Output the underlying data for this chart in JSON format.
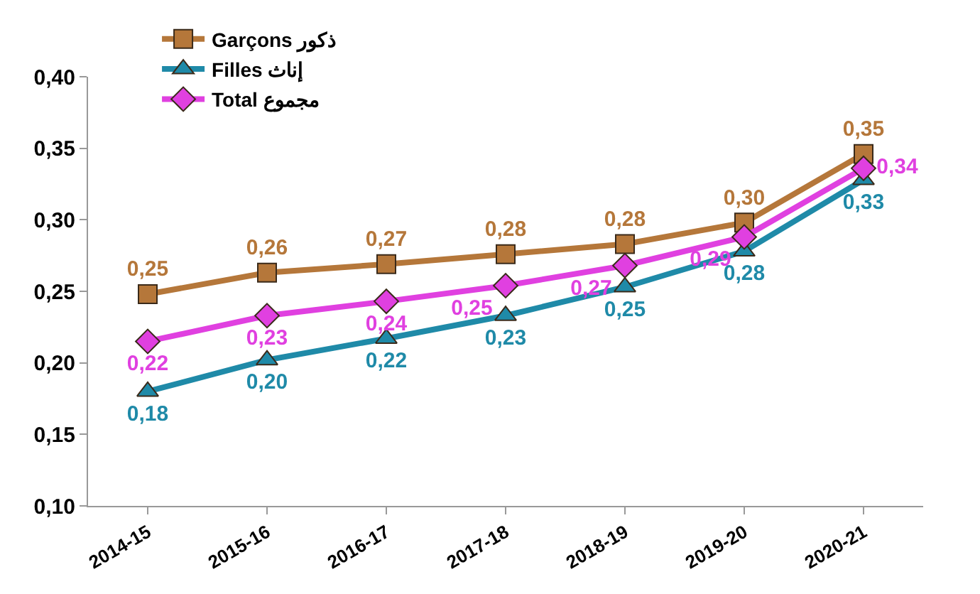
{
  "chart_data": {
    "type": "line",
    "categories": [
      "2014-15",
      "2015-16",
      "2016-17",
      "2017-18",
      "2018-19",
      "2019-20",
      "2020-21"
    ],
    "series": [
      {
        "name": "Garçons ذكور",
        "color": "#b5773a",
        "marker": "square",
        "values": [
          0.248,
          0.263,
          0.269,
          0.276,
          0.283,
          0.298,
          0.346
        ],
        "value_labels": [
          "0,25",
          "0,26",
          "0,27",
          "0,28",
          "0,28",
          "0,30",
          "0,35"
        ]
      },
      {
        "name": "Filles إناث",
        "color": "#1f8aa8",
        "marker": "triangle",
        "values": [
          0.18,
          0.202,
          0.217,
          0.233,
          0.253,
          0.278,
          0.328
        ],
        "value_labels": [
          "0,18",
          "0,20",
          "0,22",
          "0,23",
          "0,25",
          "0,28",
          "0,33"
        ]
      },
      {
        "name": "Total مجموع",
        "color": "#e040e0",
        "marker": "diamond",
        "values": [
          0.215,
          0.233,
          0.243,
          0.254,
          0.268,
          0.288,
          0.336
        ],
        "value_labels": [
          "0,22",
          "0,23",
          "0,24",
          "0,25",
          "0,27",
          "0,29",
          "0,34"
        ]
      }
    ],
    "ylim": [
      0.1,
      0.4
    ],
    "yticks": [
      {
        "value": 0.1,
        "label": "0,10"
      },
      {
        "value": 0.15,
        "label": "0,15"
      },
      {
        "value": 0.2,
        "label": "0,20"
      },
      {
        "value": 0.25,
        "label": "0,25"
      },
      {
        "value": 0.3,
        "label": "0,30"
      },
      {
        "value": 0.35,
        "label": "0,35"
      },
      {
        "value": 0.4,
        "label": "0,40"
      }
    ],
    "grid": false,
    "legend": "top left",
    "line_style": "solid"
  }
}
